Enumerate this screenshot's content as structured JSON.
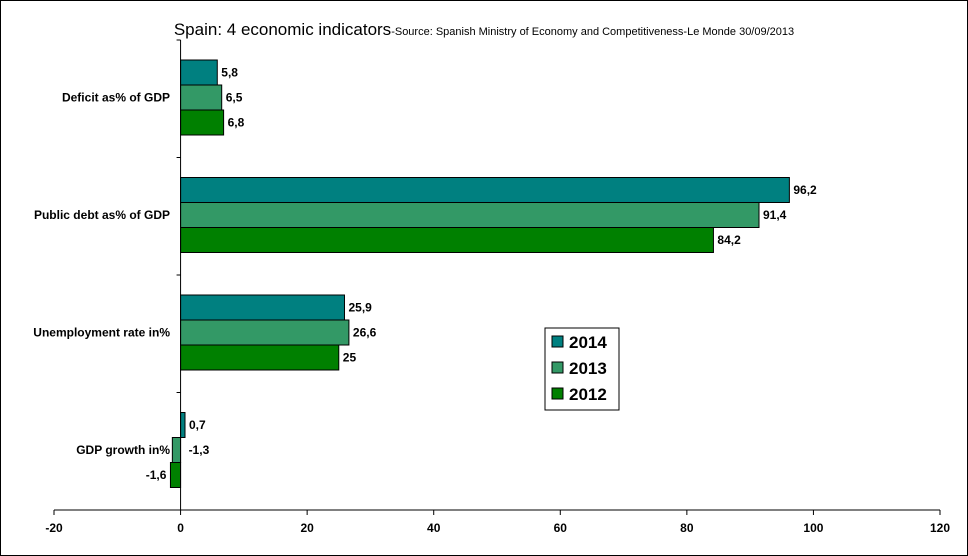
{
  "chart_data": {
    "type": "bar",
    "orientation": "horizontal",
    "title": "Spain: 4 economic indicators",
    "subtitle": "-Source: Spanish Ministry of Economy and Competitiveness-Le Monde 30/09/2013",
    "categories": [
      "Deficit as% of GDP",
      "Public debt as% of GDP",
      "Unemployment rate in%",
      "GDP growth in%"
    ],
    "series": [
      {
        "name": "2014",
        "color": "#008080",
        "values": [
          5.8,
          96.2,
          25.9,
          0.7
        ],
        "labels": [
          "5,8",
          "96,2",
          "25,9",
          "0,7"
        ]
      },
      {
        "name": "2013",
        "color": "#339966",
        "values": [
          6.5,
          91.4,
          26.6,
          -1.3
        ],
        "labels": [
          "6,5",
          "91,4",
          "26,6",
          "-1,3"
        ]
      },
      {
        "name": "2012",
        "color": "#008000",
        "values": [
          6.8,
          84.2,
          25,
          -1.6
        ],
        "labels": [
          "6,8",
          "84,2",
          "25",
          "-1,6"
        ]
      }
    ],
    "xlim": [
      -20,
      120
    ],
    "xticks": [
      -20,
      0,
      20,
      40,
      60,
      80,
      100,
      120
    ],
    "grid": false,
    "legend": "center-right"
  }
}
